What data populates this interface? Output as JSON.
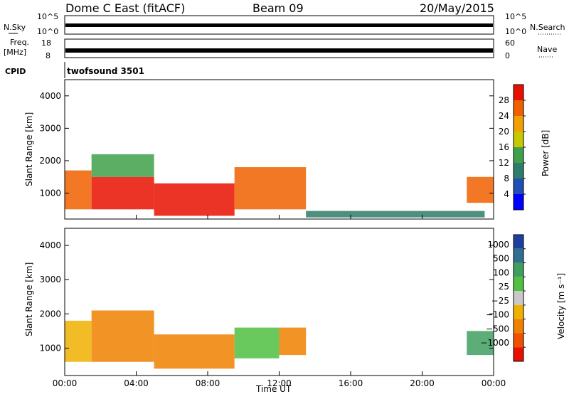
{
  "header": {
    "title": "Dome C East (fitACF)",
    "beam": "Beam 09",
    "date": "20/May/2015"
  },
  "status_panels": {
    "nsky_label": "N.Sky",
    "nsearch_label": "N.Search",
    "nsky_ticks": [
      "10^5",
      "10^0"
    ],
    "nsearch_ticks": [
      "10^5",
      "10^0"
    ],
    "freq_label": "Freq.",
    "freq_unit": "[MHz]",
    "freq_ticks": [
      "18",
      "8"
    ],
    "nave_label": "Nave",
    "nave_ticks": [
      "60",
      "0"
    ],
    "cpid_label": "CPID",
    "cpid_value": "twofsound 3501"
  },
  "colors": {
    "power_scale": [
      "#0000ff",
      "#1f4fb4",
      "#2e7d6a",
      "#3fa04a",
      "#c8c800",
      "#f0a000",
      "#f06000",
      "#e81000"
    ],
    "velocity_scale": [
      "#1f3fa0",
      "#2f6f8f",
      "#3f9f5f",
      "#50c040",
      "#c8c8c8",
      "#f0b000",
      "#f08000",
      "#f05000",
      "#e81000"
    ]
  },
  "chart_data": [
    {
      "type": "heatmap",
      "name": "power",
      "ylabel": "Slant Range [km]",
      "y_ticks": [
        "4000",
        "3000",
        "2000",
        "1000"
      ],
      "ylim": [
        200,
        4500
      ],
      "colorbar_label": "Power [dB]",
      "colorbar_ticks": [
        "28",
        "24",
        "20",
        "16",
        "12",
        "8",
        "4"
      ],
      "colorbar_range": [
        0,
        32
      ],
      "echo_regions": [
        {
          "t0": 0.0,
          "t1": 1.5,
          "r0": 500,
          "r1": 1700,
          "value": 26
        },
        {
          "t0": 1.5,
          "t1": 5.0,
          "r0": 500,
          "r1": 1500,
          "value": 28
        },
        {
          "t0": 1.5,
          "t1": 5.0,
          "r0": 1500,
          "r1": 2200,
          "value": 14
        },
        {
          "t0": 5.0,
          "t1": 9.5,
          "r0": 300,
          "r1": 1300,
          "value": 28
        },
        {
          "t0": 9.5,
          "t1": 13.5,
          "r0": 500,
          "r1": 1800,
          "value": 24
        },
        {
          "t0": 13.5,
          "t1": 23.5,
          "r0": 250,
          "r1": 450,
          "value": 10
        },
        {
          "t0": 22.5,
          "t1": 24.0,
          "r0": 700,
          "r1": 1500,
          "value": 26
        }
      ]
    },
    {
      "type": "heatmap",
      "name": "velocity",
      "ylabel": "Slant Range [km]",
      "xlabel": "Time UT",
      "x_ticks": [
        "00:00",
        "04:00",
        "08:00",
        "12:00",
        "16:00",
        "20:00",
        "00:00"
      ],
      "y_ticks": [
        "4000",
        "3000",
        "2000",
        "1000"
      ],
      "ylim": [
        200,
        4500
      ],
      "xlim": [
        0,
        24
      ],
      "colorbar_label": "Velocity [m s⁻¹]",
      "colorbar_ticks": [
        "1000",
        "500",
        "100",
        "25",
        "−25",
        "−100",
        "−500",
        "−1000"
      ],
      "echo_regions": [
        {
          "t0": 0.0,
          "t1": 1.5,
          "r0": 600,
          "r1": 1800,
          "value": -100
        },
        {
          "t0": 1.5,
          "t1": 5.0,
          "r0": 600,
          "r1": 2100,
          "value": -300
        },
        {
          "t0": 5.0,
          "t1": 9.5,
          "r0": 400,
          "r1": 1400,
          "value": -300
        },
        {
          "t0": 9.5,
          "t1": 12.0,
          "r0": 700,
          "r1": 1600,
          "value": 50
        },
        {
          "t0": 12.0,
          "t1": 13.5,
          "r0": 800,
          "r1": 1600,
          "value": -300
        },
        {
          "t0": 22.5,
          "t1": 24.0,
          "r0": 800,
          "r1": 1500,
          "value": 100
        }
      ]
    }
  ]
}
